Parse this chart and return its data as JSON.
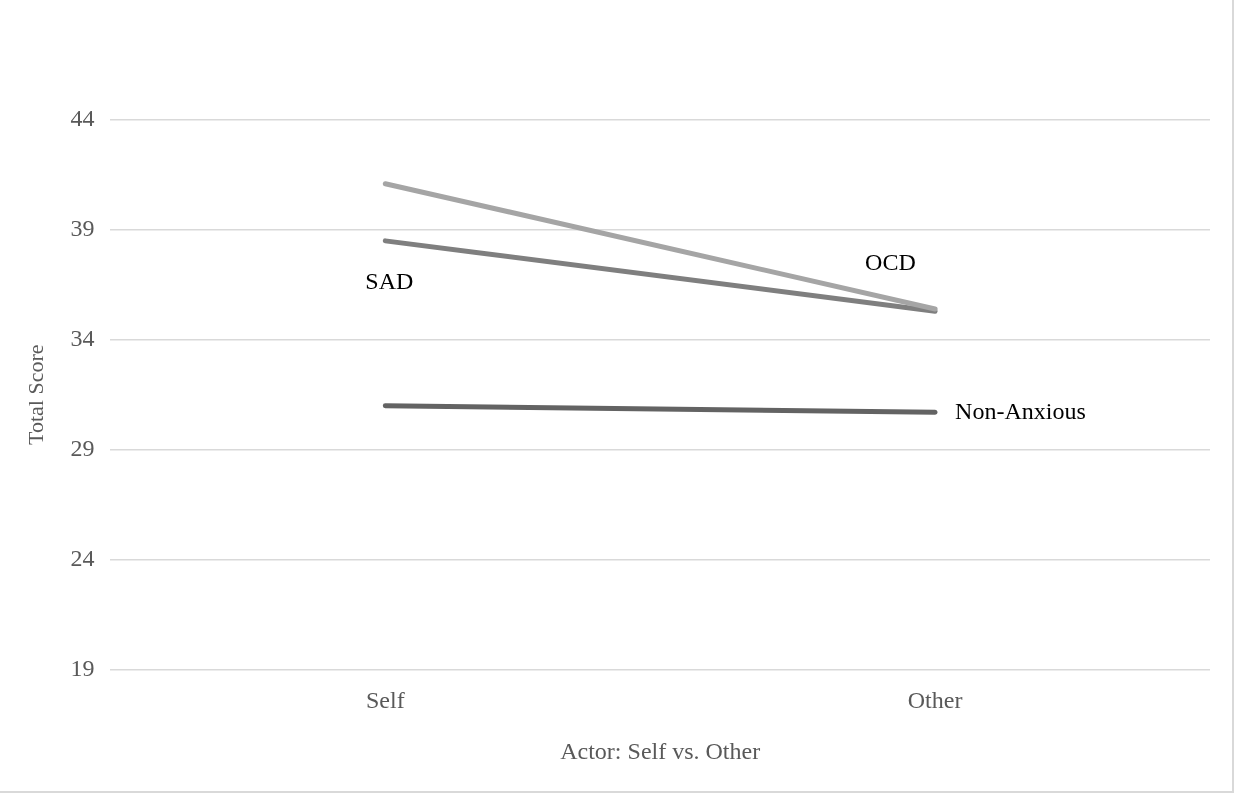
{
  "chart_data": {
    "type": "line",
    "xlabel": "Actor: Self vs. Other",
    "ylabel": "Total Score",
    "categories": [
      "Self",
      "Other"
    ],
    "series": [
      {
        "name": "OCD",
        "color": "#a5a5a5",
        "values": [
          41.1,
          35.4
        ]
      },
      {
        "name": "SAD",
        "color": "#7f7f7f",
        "values": [
          38.5,
          35.3
        ]
      },
      {
        "name": "Non-Anxious",
        "color": "#636363",
        "values": [
          31.0,
          30.7
        ]
      }
    ],
    "ylim": [
      19,
      44
    ],
    "yticks": [
      19,
      24,
      29,
      34,
      39,
      44
    ],
    "grid": "y",
    "legend": false,
    "marker": "none",
    "line_style": "solid"
  }
}
